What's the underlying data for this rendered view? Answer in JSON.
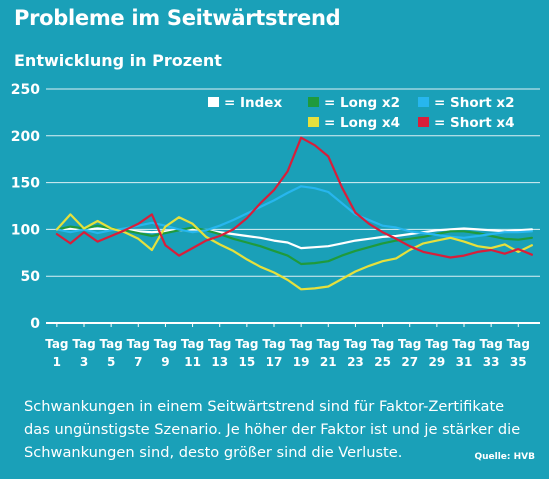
{
  "header": {
    "title": "Probleme im Seitwärtstrend",
    "subtitle": "Entwicklung in Prozent"
  },
  "footer": {
    "caption": "Schwankungen in einem Seitwärtstrend sind für Faktor-Zertifikate das ungünstigste Szenario. Je höher der Faktor ist und je stärker die Schwankungen sind, desto größer sind die Verluste.",
    "source": "Quelle: HVB"
  },
  "chart_data": {
    "type": "line",
    "title": "Probleme im Seitwärtstrend",
    "subtitle": "Entwicklung in Prozent",
    "x": [
      1,
      2,
      3,
      4,
      5,
      6,
      7,
      8,
      9,
      10,
      11,
      12,
      13,
      14,
      15,
      16,
      17,
      18,
      19,
      20,
      21,
      22,
      23,
      24,
      25,
      26,
      27,
      28,
      29,
      30,
      31,
      32,
      33,
      34,
      35,
      36
    ],
    "x_tick_values": [
      1,
      3,
      5,
      7,
      9,
      11,
      13,
      15,
      17,
      19,
      21,
      23,
      25,
      27,
      29,
      31,
      33,
      35
    ],
    "x_tick_prefix": "Tag",
    "xlim": [
      0.2,
      36.6
    ],
    "ylim": [
      0,
      250
    ],
    "yticks": [
      0,
      50,
      100,
      150,
      200,
      250
    ],
    "grid": true,
    "legend_position": "top-right",
    "colors": {
      "background": "#1aa0b8",
      "index": "#ffffff",
      "long_x2": "#1f9a3c",
      "short_x2": "#27b6ee",
      "long_x4": "#e6e03c",
      "short_x4": "#d81e3a"
    },
    "series": [
      {
        "name": "= Index",
        "key": "index",
        "values": [
          100,
          101,
          100,
          101,
          100,
          99,
          98,
          97,
          98,
          99,
          100,
          99,
          97,
          95,
          93,
          91,
          88,
          86,
          80,
          81,
          82,
          85,
          88,
          90,
          92,
          93,
          95,
          97,
          99,
          100,
          101,
          100,
          99,
          98,
          99,
          100
        ]
      },
      {
        "name": "= Long x2",
        "key": "long_x2",
        "values": [
          100,
          103,
          101,
          104,
          101,
          99,
          96,
          93,
          96,
          99,
          102,
          99,
          95,
          90,
          86,
          82,
          77,
          72,
          63,
          64,
          66,
          72,
          77,
          81,
          85,
          88,
          90,
          92,
          95,
          98,
          98,
          96,
          93,
          90,
          89,
          91
        ]
      },
      {
        "name": "= Short x2",
        "key": "short_x2",
        "values": [
          100,
          97,
          100,
          96,
          99,
          101,
          104,
          107,
          104,
          100,
          97,
          99,
          104,
          110,
          117,
          124,
          131,
          139,
          146,
          144,
          140,
          128,
          116,
          110,
          104,
          102,
          98,
          96,
          94,
          92,
          91,
          93,
          95,
          97,
          97,
          98
        ]
      },
      {
        "name": "= Long x4",
        "key": "long_x4",
        "values": [
          100,
          116,
          101,
          109,
          101,
          97,
          90,
          78,
          103,
          113,
          106,
          92,
          84,
          77,
          68,
          60,
          54,
          46,
          36,
          37,
          39,
          47,
          55,
          61,
          66,
          69,
          78,
          85,
          88,
          91,
          87,
          82,
          80,
          84,
          76,
          83
        ]
      },
      {
        "name": "= Short x4",
        "key": "short_x4",
        "values": [
          95,
          85,
          97,
          87,
          93,
          99,
          106,
          116,
          83,
          72,
          80,
          88,
          93,
          100,
          112,
          128,
          142,
          162,
          198,
          190,
          178,
          145,
          118,
          106,
          97,
          90,
          82,
          76,
          73,
          70,
          72,
          76,
          78,
          74,
          79,
          73
        ]
      }
    ],
    "legend_order": [
      "index",
      "long_x2",
      "short_x2",
      "long_x4",
      "short_x4"
    ]
  }
}
